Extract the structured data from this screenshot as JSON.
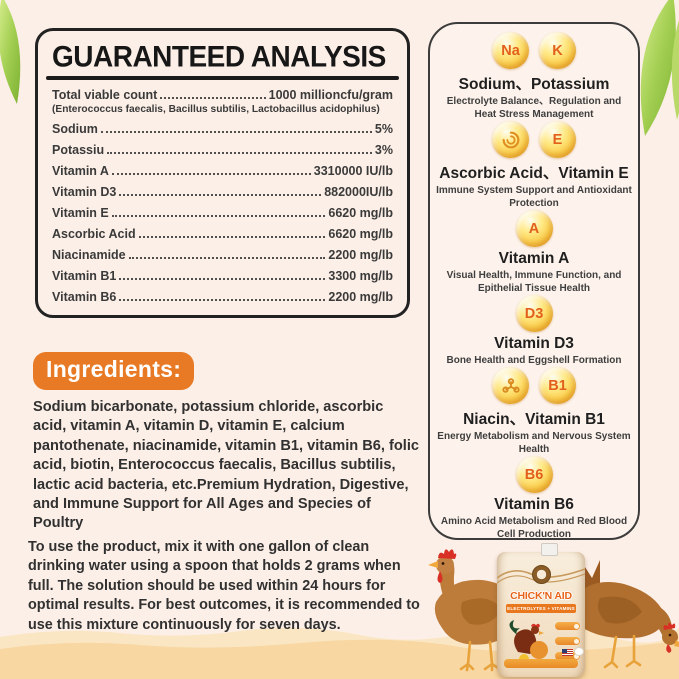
{
  "analysis": {
    "title": "GUARANTEED ANALYSIS",
    "rows": [
      {
        "label": "Total viable count",
        "value": "1000 millioncfu/gram",
        "note": "(Enterococcus faecalis, Bacillus subtilis, Lactobacillus acidophilus)"
      },
      {
        "label": "Sodium",
        "value": "5%"
      },
      {
        "label": "Potassiu",
        "value": "3%"
      },
      {
        "label": "Vitamin A",
        "value": "3310000 IU/lb"
      },
      {
        "label": "Vitamin D3",
        "value": "882000IU/lb"
      },
      {
        "label": "Vitamin E",
        "value": "6620 mg/lb"
      },
      {
        "label": "Ascorbic Acid",
        "value": "6620 mg/lb"
      },
      {
        "label": "Niacinamide",
        "value": "2200 mg/lb"
      },
      {
        "label": "Vitamin B1",
        "value": "3300 mg/lb"
      },
      {
        "label": "Vitamin B6",
        "value": "2200 mg/lb"
      }
    ]
  },
  "ingredients": {
    "badge": "Ingredients:",
    "text": "Sodium bicarbonate, potassium chloride, ascorbic acid, vitamin A, vitamin D, vitamin E, calcium pantothenate, niacinamide, vitamin B1, vitamin B6, folic acid, biotin, Enterococcus faecalis, Bacillus subtilis, lactic acid bacteria, etc.Premium Hydration, Digestive, and Immune Support for All Ages and Species of Poultry"
  },
  "usage": {
    "text": "To use the product, mix it with one gallon of clean drinking water using a spoon that holds 2 grams when full. The solution should be used within 24 hours for optimal results. For best outcomes, it is recommended to use this mixture continuously for seven days."
  },
  "nutrients": [
    {
      "icons": [
        {
          "type": "text",
          "label": "Na"
        },
        {
          "type": "text",
          "label": "K"
        }
      ],
      "title": "Sodium、Potassium",
      "desc": "Electrolyte Balance、Regulation and Heat Stress Management"
    },
    {
      "icons": [
        {
          "type": "swirl",
          "name": "ascorbic-acid"
        },
        {
          "type": "text",
          "label": "E"
        }
      ],
      "title": "Ascorbic Acid、Vitamin E",
      "desc": "Immune System Support and Antioxidant Protection"
    },
    {
      "icons": [
        {
          "type": "text",
          "label": "A"
        }
      ],
      "title": "Vitamin A",
      "desc": "Visual Health, Immune Function, and Epithelial Tissue Health"
    },
    {
      "icons": [
        {
          "type": "text",
          "label": "D3"
        }
      ],
      "title": "Vitamin D3",
      "desc": "Bone Health and Eggshell Formation"
    },
    {
      "icons": [
        {
          "type": "molecule",
          "name": "niacin"
        },
        {
          "type": "text",
          "label": "B1"
        }
      ],
      "title": "Niacin、Vitamin B1",
      "desc": "Energy Metabolism and Nervous System Health"
    },
    {
      "icons": [
        {
          "type": "text",
          "label": "B6"
        }
      ],
      "title": "Vitamin B6",
      "desc": "Amino Acid Metabolism and Red Blood Cell Production"
    }
  ],
  "product": {
    "name": "CHICK'N AID",
    "subtitle": "ELECTROLYTES + VITAMINS"
  },
  "colors": {
    "page_bg": "#fcefe7",
    "accent_orange": "#e87a25",
    "coin_gold": "#fbcf4e",
    "coin_letter": "#e2601c",
    "leaf_green": "#8fbe3c",
    "sand": "#f8d7a2",
    "comb_red": "#d93025",
    "text_dark": "#3a3a3a"
  }
}
